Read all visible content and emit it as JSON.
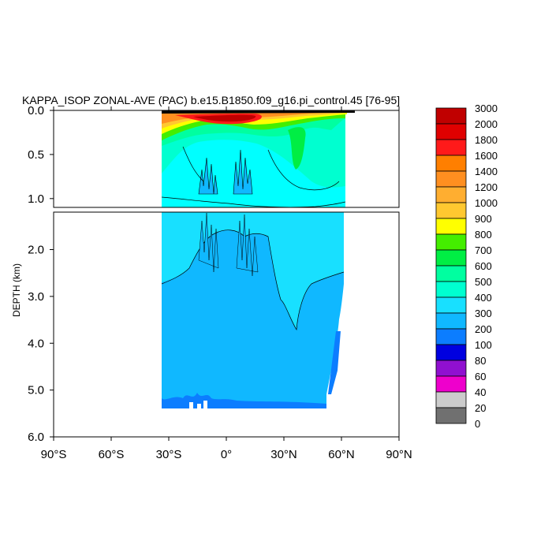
{
  "chart_data": {
    "type": "heatmap",
    "title": "KAPPA_ISOP ZONAL-AVE (PAC) b.e15.B1850.f09_g16.pi_control.45 [76-95]",
    "ylabel": "DEPTH (km)",
    "xlabel": "",
    "xlim": [
      -90,
      90
    ],
    "ylim": [
      0,
      6
    ],
    "upper_panel_yticks": [
      "0.0",
      "0.5",
      "1.0"
    ],
    "lower_panel_yticks": [
      "2.0",
      "3.0",
      "4.0",
      "5.0",
      "6.0"
    ],
    "xticks": [
      {
        "value": -90,
        "label": "90°S"
      },
      {
        "value": -60,
        "label": "60°S"
      },
      {
        "value": -30,
        "label": "30°S"
      },
      {
        "value": 0,
        "label": "0°"
      },
      {
        "value": 30,
        "label": "30°N"
      },
      {
        "value": 60,
        "label": "60°N"
      },
      {
        "value": 90,
        "label": "90°N"
      }
    ],
    "colorbar": {
      "levels": [
        "3000",
        "2000",
        "1800",
        "1600",
        "1400",
        "1200",
        "1000",
        "900",
        "800",
        "700",
        "600",
        "500",
        "400",
        "300",
        "200",
        "100",
        "80",
        "60",
        "40",
        "20",
        "0"
      ],
      "colors": [
        "#c00000",
        "#e00000",
        "#ff1a1a",
        "#ff7f00",
        "#ff8f20",
        "#ffae30",
        "#ffc830",
        "#ffff00",
        "#44ee00",
        "#00ee44",
        "#00ffa0",
        "#00ffd0",
        "#18e0ff",
        "#10b8ff",
        "#0c7dff",
        "#0000e0",
        "#9010d0",
        "#ee00cc",
        "#cccccc",
        "#707070"
      ]
    },
    "data_extent": {
      "lat_min": -34,
      "lat_max": 61,
      "depth_max_km": 5.4
    }
  }
}
